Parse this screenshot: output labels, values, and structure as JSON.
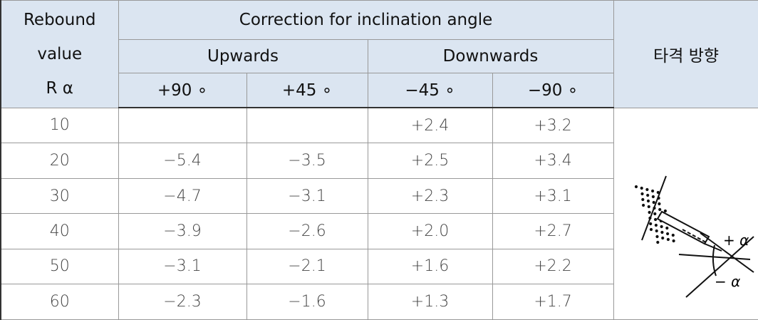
{
  "header": {
    "rebound_lines": [
      "Rebound",
      "value",
      "R α"
    ],
    "group_title": "Correction for inclination angle",
    "upwards": "Upwards",
    "downwards": "Downwards",
    "direction": "타격 방향",
    "angles": [
      "+90 ∘",
      "+45 ∘",
      "−45 ∘",
      "−90 ∘"
    ]
  },
  "table": {
    "rows": [
      [
        "10",
        null,
        null,
        "+2.4",
        "+3.2"
      ],
      [
        "20",
        "−5.4",
        "−3.5",
        "+2.5",
        "+3.4"
      ],
      [
        "30",
        "−4.7",
        "−3.1",
        "+2.3",
        "+3.1"
      ],
      [
        "40",
        "−3.9",
        "−2.6",
        "+2.0",
        "+2.7"
      ],
      [
        "50",
        "−3.1",
        "−2.1",
        "+1.6",
        "+2.2"
      ],
      [
        "60",
        "−2.3",
        "−1.6",
        "+1.3",
        "+1.7"
      ]
    ]
  },
  "figure": {
    "plus_label": "+ α",
    "minus_label": "− α"
  }
}
